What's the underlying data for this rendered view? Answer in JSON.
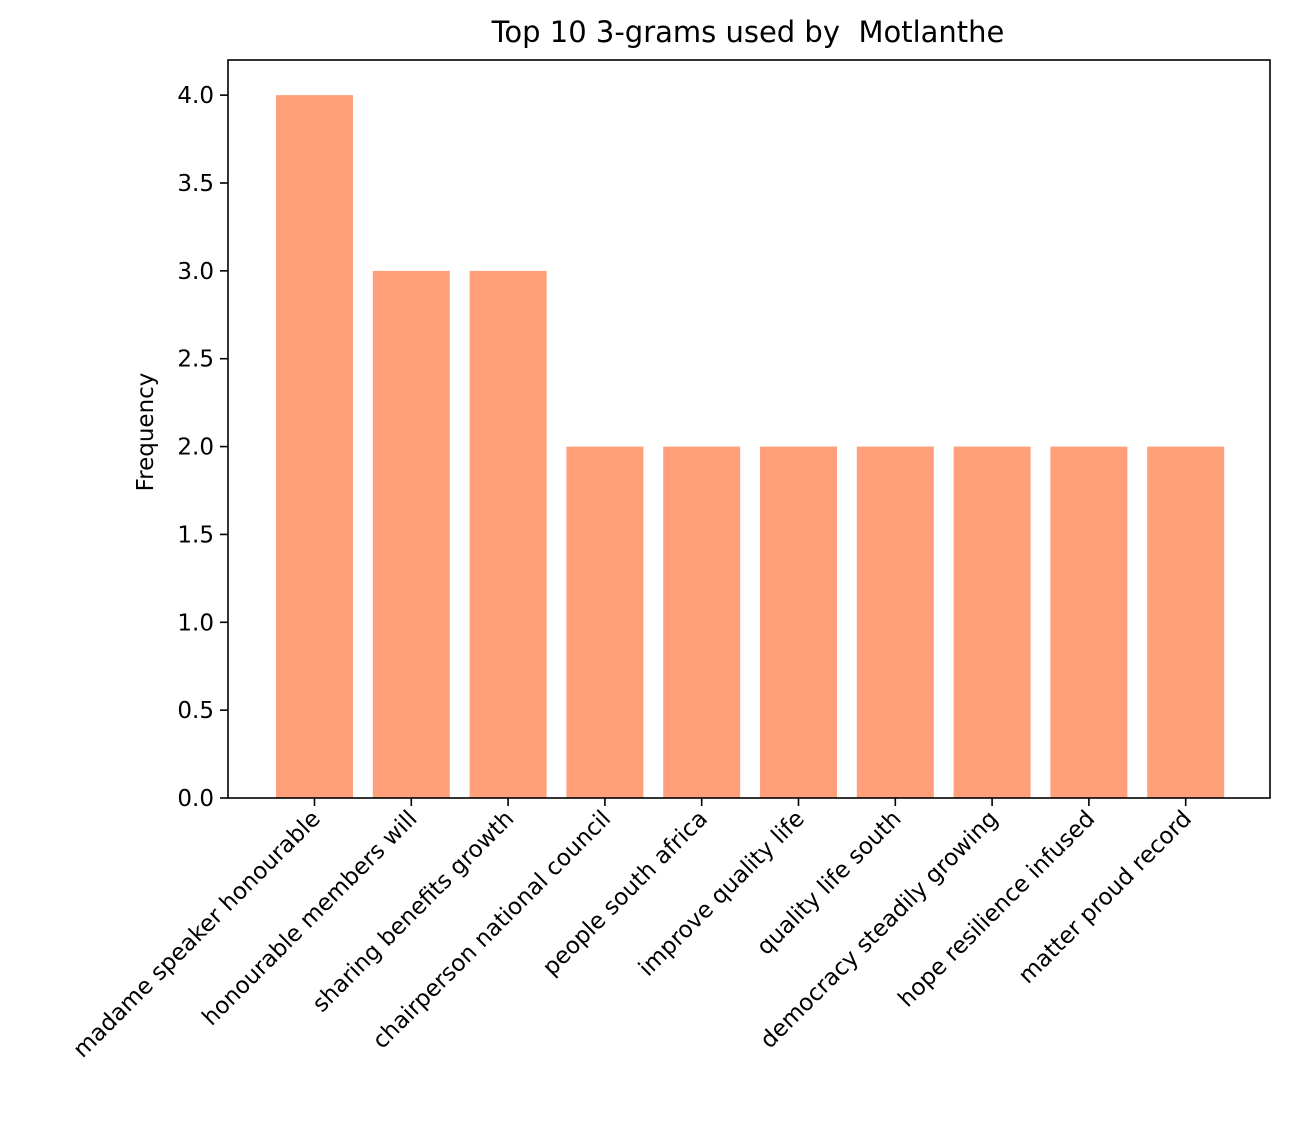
{
  "chart_data": {
    "type": "bar",
    "title": "Top 10 3-grams used by  Motlanthe",
    "xlabel": "",
    "ylabel": "Frequency",
    "categories": [
      "madame speaker honourable",
      "honourable members will",
      "sharing benefits growth",
      "chairperson national council",
      "people south africa",
      "improve quality life",
      "quality life south",
      "democracy steadily growing",
      "hope resilience infused",
      "matter proud record"
    ],
    "values": [
      4,
      3,
      3,
      2,
      2,
      2,
      2,
      2,
      2,
      2
    ],
    "ylim": [
      0,
      4.2
    ],
    "yticks": [
      "0.0",
      "0.5",
      "1.0",
      "1.5",
      "2.0",
      "2.5",
      "3.0",
      "3.5",
      "4.0"
    ],
    "bar_color": "#ffa07a",
    "grid": false,
    "legend": "none"
  }
}
